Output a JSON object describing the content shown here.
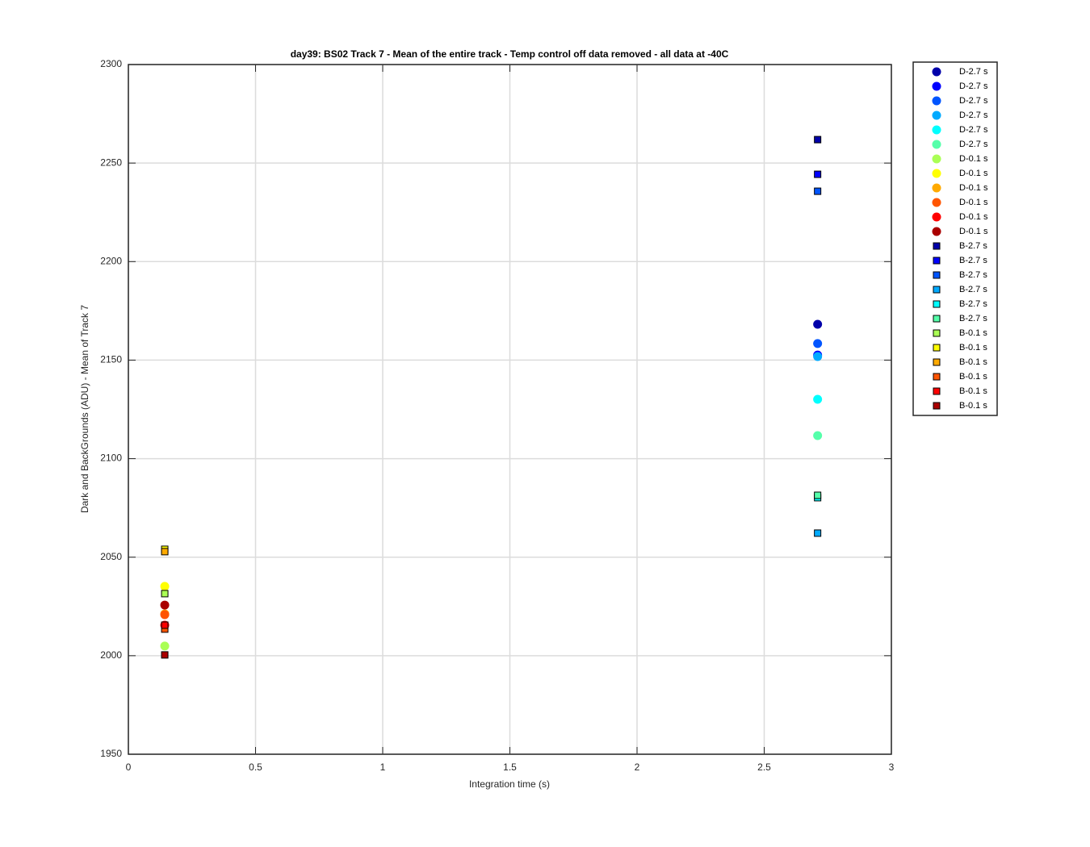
{
  "chart_data": {
    "type": "scatter",
    "title": "day39: BS02  Track 7 - Mean of the entire track - Temp control off data removed - all data at -40C",
    "x_label": "Integration time (s)",
    "y_label": "Dark and BackGrounds (ADU) - Mean of Track 7",
    "xlim": [
      0,
      3
    ],
    "xticks": [
      0,
      0.5,
      1,
      1.5,
      2,
      2.5,
      3
    ],
    "ylim": [
      1950,
      2300
    ],
    "yticks": [
      1950,
      2000,
      2050,
      2100,
      2150,
      2200,
      2250,
      2300
    ],
    "grid": true,
    "legend": "outside-right",
    "series": [
      {
        "name": "D-2.7 s",
        "color": "#0000aa",
        "marker": "circle",
        "x": [
          2.71
        ],
        "values": [
          2168.2
        ]
      },
      {
        "name": "D-2.7 s",
        "color": "#0000ff",
        "marker": "circle",
        "x": [
          2.71
        ],
        "values": [
          2152.6
        ]
      },
      {
        "name": "D-2.7 s",
        "color": "#0055ff",
        "marker": "circle",
        "x": [
          2.71
        ],
        "values": [
          2158.4
        ]
      },
      {
        "name": "D-2.7 s",
        "color": "#00aaff",
        "marker": "circle",
        "x": [
          2.71
        ],
        "values": [
          2151.8
        ]
      },
      {
        "name": "D-2.7 s",
        "color": "#00ffff",
        "marker": "circle",
        "x": [
          2.71
        ],
        "values": [
          2130.1
        ]
      },
      {
        "name": "D-2.7 s",
        "color": "#55ffaa",
        "marker": "circle",
        "x": [
          2.71
        ],
        "values": [
          2111.7
        ]
      },
      {
        "name": "D-0.1 s",
        "color": "#aaff55",
        "marker": "circle",
        "x": [
          0.143
        ],
        "values": [
          2004.9
        ]
      },
      {
        "name": "D-0.1 s",
        "color": "#ffff00",
        "marker": "circle",
        "x": [
          0.143
        ],
        "values": [
          2035.2
        ]
      },
      {
        "name": "D-0.1 s",
        "color": "#ffaa00",
        "marker": "circle",
        "x": [
          0.143
        ],
        "values": [
          2021.2
        ]
      },
      {
        "name": "D-0.1 s",
        "color": "#ff5500",
        "marker": "circle",
        "x": [
          0.143
        ],
        "values": [
          2020.8
        ]
      },
      {
        "name": "D-0.1 s",
        "color": "#ff0000",
        "marker": "circle",
        "x": [
          0.143
        ],
        "values": [
          2015.5
        ]
      },
      {
        "name": "D-0.1 s",
        "color": "#aa0000",
        "marker": "circle",
        "x": [
          0.143
        ],
        "values": [
          2025.7
        ]
      },
      {
        "name": "B-2.7 s",
        "color": "#0000aa",
        "marker": "square",
        "x": [
          2.71
        ],
        "values": [
          2261.9
        ]
      },
      {
        "name": "B-2.7 s",
        "color": "#0000ff",
        "marker": "square",
        "x": [
          2.71
        ],
        "values": [
          2244.3
        ]
      },
      {
        "name": "B-2.7 s",
        "color": "#0055ff",
        "marker": "square",
        "x": [
          2.71
        ],
        "values": [
          2235.7
        ]
      },
      {
        "name": "B-2.7 s",
        "color": "#00aaff",
        "marker": "square",
        "x": [
          2.71
        ],
        "values": [
          2062.2
        ]
      },
      {
        "name": "B-2.7 s",
        "color": "#00ffff",
        "marker": "square",
        "x": [
          2.71
        ],
        "values": [
          2080.2
        ]
      },
      {
        "name": "B-2.7 s",
        "color": "#55ffaa",
        "marker": "square",
        "x": [
          2.71
        ],
        "values": [
          2081.4
        ]
      },
      {
        "name": "B-0.1 s",
        "color": "#aaff55",
        "marker": "square",
        "x": [
          0.143
        ],
        "values": [
          2031.5
        ]
      },
      {
        "name": "B-0.1 s",
        "color": "#ffff00",
        "marker": "square",
        "x": [
          0.143
        ],
        "values": [
          2054.0
        ]
      },
      {
        "name": "B-0.1 s",
        "color": "#ffaa00",
        "marker": "square",
        "x": [
          0.143
        ],
        "values": [
          2052.8
        ]
      },
      {
        "name": "B-0.1 s",
        "color": "#ff5500",
        "marker": "square",
        "x": [
          0.143
        ],
        "values": [
          2013.5
        ]
      },
      {
        "name": "B-0.1 s",
        "color": "#ff0000",
        "marker": "square",
        "x": [
          0.143
        ],
        "values": [
          2015.5
        ]
      },
      {
        "name": "B-0.1 s",
        "color": "#aa0000",
        "marker": "square",
        "x": [
          0.143
        ],
        "values": [
          2000.4
        ]
      }
    ]
  }
}
